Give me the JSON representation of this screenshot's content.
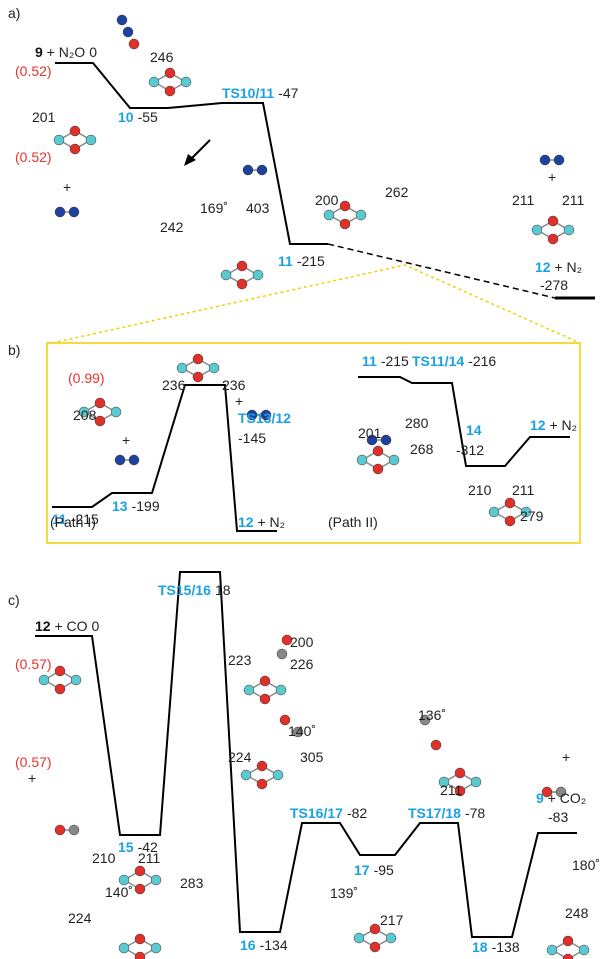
{
  "a": {
    "tag": "a)",
    "species": [
      {
        "name": "9",
        "rest": " + N₂O",
        "energy": "0"
      },
      {
        "name": "10",
        "energy": "-55"
      },
      {
        "name": "TS10/11",
        "energy": "-47"
      },
      {
        "name": "11",
        "energy": "-215"
      },
      {
        "name": "12",
        "rest": " + N₂",
        "energy": "-278"
      }
    ],
    "distances": [
      "246",
      "201",
      "242",
      "169˚",
      "403",
      "200",
      "262",
      "211",
      "211"
    ],
    "charges": [
      "(0.52)",
      "(0.52)"
    ],
    "plus": [
      "+",
      "+"
    ]
  },
  "b": {
    "tag": "b)",
    "species": [
      {
        "name": "11",
        "energy": "-215"
      },
      {
        "name": "13",
        "energy": "-199"
      },
      {
        "name": "TS13/12",
        "energy": "-145"
      },
      {
        "name": "12",
        "rest": " + N₂"
      },
      {
        "name": "11",
        "energy": "-215"
      },
      {
        "name": "TS11/14",
        "energy": "-216"
      },
      {
        "name": "14",
        "energy": "-312"
      },
      {
        "name": "12",
        "rest": " + N₂"
      }
    ],
    "paths": [
      "(Path I)",
      "(Path II)"
    ],
    "charges": [
      "(0.99)"
    ],
    "distances": [
      "208",
      "236",
      "236",
      "201",
      "280",
      "268",
      "210",
      "211",
      "279"
    ],
    "plus": [
      "+",
      "+"
    ]
  },
  "c": {
    "tag": "c)",
    "species": [
      {
        "name": "12",
        "rest": " + CO",
        "energy": "0"
      },
      {
        "name": "TS15/16",
        "energy": "18"
      },
      {
        "name": "15",
        "energy": "-42"
      },
      {
        "name": "TS16/17",
        "energy": "-82"
      },
      {
        "name": "17",
        "energy": "-95"
      },
      {
        "name": "TS17/18",
        "energy": "-78"
      },
      {
        "name": "9",
        "rest": " + CO₂",
        "energy": "-83"
      },
      {
        "name": "16",
        "energy": "-134"
      },
      {
        "name": "18",
        "energy": "-138"
      }
    ],
    "charges": [
      "(0.57)",
      "(0.57)"
    ],
    "plus": [
      "+",
      "+"
    ],
    "distances": [
      "200",
      "223",
      "226",
      "140˚",
      "224",
      "305",
      "136˚",
      "211",
      "210",
      "211",
      "283",
      "180˚",
      "248",
      "140˚",
      "224",
      "139˚",
      "217"
    ]
  }
}
